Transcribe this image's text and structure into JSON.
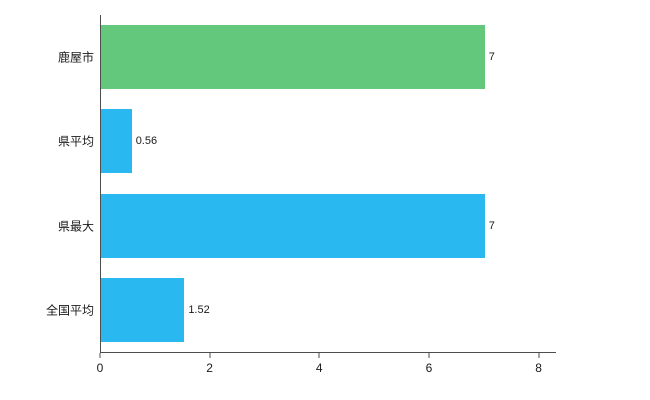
{
  "chart_data": {
    "type": "bar",
    "orientation": "horizontal",
    "title": "",
    "categories": [
      "鹿屋市",
      "県平均",
      "県最大",
      "全国平均"
    ],
    "values": [
      7,
      0.56,
      7,
      1.52
    ],
    "value_labels": [
      "7",
      "0.56",
      "7",
      "1.52"
    ],
    "bar_colors": [
      "#63c87c",
      "#29b8f0",
      "#29b8f0",
      "#29b8f0"
    ],
    "x_ticks": [
      0,
      2,
      4,
      6,
      8
    ],
    "x_tick_labels": [
      "0",
      "2",
      "4",
      "6",
      "8"
    ],
    "xlim": [
      0,
      8.3
    ],
    "grid": false,
    "legend": null
  },
  "colors": {
    "background": "#ffffff",
    "axis": "#4d4d4d",
    "text": "#1a1a1a",
    "green_bar": "#63c87c",
    "blue_bar": "#29b8f0"
  }
}
